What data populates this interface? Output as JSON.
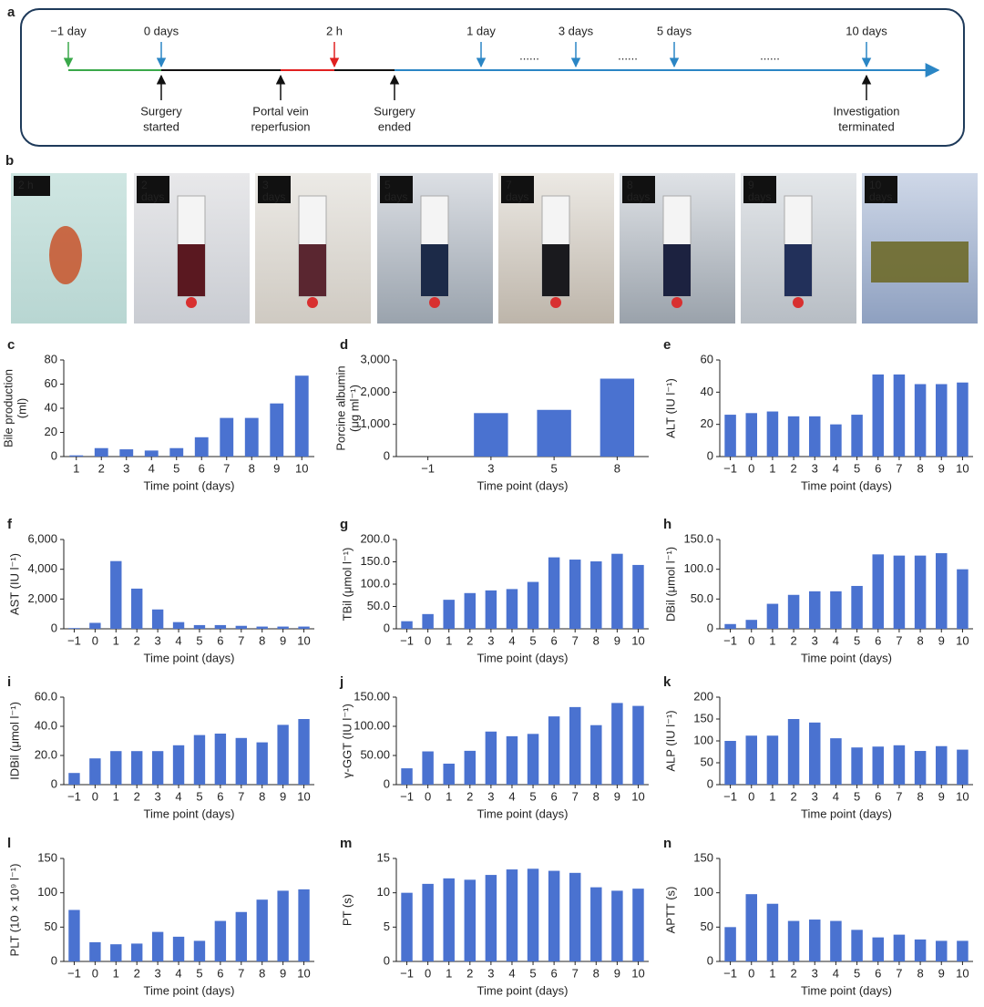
{
  "timeline": {
    "panel": "a",
    "top_labels": [
      {
        "text": "−1 day",
        "color": "#3aa84a"
      },
      {
        "text": "0 days",
        "color": "#2b86c5"
      },
      {
        "text": "2 h",
        "color": "#e02020"
      },
      {
        "text": "1 day",
        "color": "#2b86c5"
      },
      {
        "text": "3 days",
        "color": "#2b86c5"
      },
      {
        "text": "5 days",
        "color": "#2b86c5"
      },
      {
        "text": "10 days",
        "color": "#2b86c5"
      }
    ],
    "dots": [
      "......",
      "......",
      "......"
    ],
    "events": [
      [
        "Surgery",
        "started"
      ],
      [
        "Portal vein",
        "reperfusion"
      ],
      [
        "Surgery",
        "ended"
      ],
      [
        "Investigation",
        "terminated"
      ]
    ]
  },
  "photos": {
    "panel": "b",
    "labels": [
      [
        "2 h"
      ],
      [
        "2",
        "days"
      ],
      [
        "3",
        "days"
      ],
      [
        "5",
        "days"
      ],
      [
        "7",
        "days"
      ],
      [
        "8",
        "days"
      ],
      [
        "9",
        "days"
      ],
      [
        "10",
        "days"
      ]
    ]
  },
  "chart_data": [
    {
      "type": "bar",
      "panel": "c",
      "y_label": [
        "Bile production",
        "(ml)"
      ],
      "x_label": "Time point (days)",
      "color": "#4a72d0",
      "categories": [
        "1",
        "2",
        "3",
        "4",
        "5",
        "6",
        "7",
        "8",
        "9",
        "10"
      ],
      "values": [
        1,
        7,
        6,
        5,
        7,
        16,
        32,
        32,
        44,
        67
      ],
      "ylim": [
        0,
        80
      ],
      "yticks": [
        0,
        20,
        40,
        60,
        80
      ]
    },
    {
      "type": "bar",
      "panel": "d",
      "y_label": [
        "Porcine albumin",
        "(μg ml⁻¹)"
      ],
      "x_label": "Time point (days)",
      "color": "#4a72d0",
      "categories": [
        "−1",
        "3",
        "5",
        "8"
      ],
      "values": [
        0,
        1350,
        1450,
        2420
      ],
      "ylim": [
        0,
        3000
      ],
      "yticks": [
        0,
        {
          "value": 1000,
          "label": "1,000"
        },
        {
          "value": 2000,
          "label": "2,000"
        },
        {
          "value": 3000,
          "label": "3,000"
        }
      ]
    },
    {
      "type": "bar",
      "panel": "e",
      "y_label": [
        "ALT (IU l⁻¹)"
      ],
      "x_label": "Time point (days)",
      "color": "#4a72d0",
      "categories": [
        "−1",
        "0",
        "1",
        "2",
        "3",
        "4",
        "5",
        "6",
        "7",
        "8",
        "9",
        "10"
      ],
      "values": [
        26,
        27,
        28,
        25,
        25,
        20,
        26,
        51,
        51,
        45,
        45,
        46
      ],
      "ylim": [
        0,
        60
      ],
      "yticks": [
        0,
        20,
        40,
        60
      ]
    },
    {
      "type": "bar",
      "panel": "f",
      "y_label": [
        "AST (IU l⁻¹)"
      ],
      "x_label": "Time point (days)",
      "color": "#4a72d0",
      "categories": [
        "−1",
        "0",
        "1",
        "2",
        "3",
        "4",
        "5",
        "6",
        "7",
        "8",
        "9",
        "10"
      ],
      "values": [
        50,
        400,
        4550,
        2700,
        1300,
        450,
        250,
        250,
        200,
        150,
        150,
        150
      ],
      "ylim": [
        0,
        6000
      ],
      "yticks": [
        0,
        {
          "value": 2000,
          "label": "2,000"
        },
        {
          "value": 4000,
          "label": "4,000"
        },
        {
          "value": 6000,
          "label": "6,000"
        }
      ]
    },
    {
      "type": "bar",
      "panel": "g",
      "y_label": [
        "TBil (μmol l⁻¹)"
      ],
      "x_label": "Time point (days)",
      "color": "#4a72d0",
      "categories": [
        "−1",
        "0",
        "1",
        "2",
        "3",
        "4",
        "5",
        "6",
        "7",
        "8",
        "9",
        "10"
      ],
      "values": [
        17,
        33,
        65,
        80,
        86,
        89,
        105,
        160,
        155,
        151,
        168,
        143
      ],
      "ylim": [
        0,
        200
      ],
      "yticks": [
        0,
        {
          "value": 50,
          "label": "50.0"
        },
        {
          "value": 100,
          "label": "100.0"
        },
        {
          "value": 150,
          "label": "150.0"
        },
        {
          "value": 200,
          "label": "200.0"
        }
      ]
    },
    {
      "type": "bar",
      "panel": "h",
      "y_label": [
        "DBil (μmol l⁻¹)"
      ],
      "x_label": "Time point (days)",
      "color": "#4a72d0",
      "categories": [
        "−1",
        "0",
        "1",
        "2",
        "3",
        "4",
        "5",
        "6",
        "7",
        "8",
        "9",
        "10"
      ],
      "values": [
        8,
        15,
        42,
        57,
        63,
        63,
        72,
        125,
        123,
        123,
        127,
        100
      ],
      "ylim": [
        0,
        150
      ],
      "yticks": [
        0,
        {
          "value": 50,
          "label": "50.0"
        },
        {
          "value": 100,
          "label": "100.0"
        },
        {
          "value": 150,
          "label": "150.0"
        }
      ]
    },
    {
      "type": "bar",
      "panel": "i",
      "y_label": [
        "IDBil (μmol l⁻¹)"
      ],
      "x_label": "Time point (days)",
      "color": "#4a72d0",
      "categories": [
        "−1",
        "0",
        "1",
        "2",
        "3",
        "4",
        "5",
        "6",
        "7",
        "8",
        "9",
        "10"
      ],
      "values": [
        8,
        18,
        23,
        23,
        23,
        27,
        34,
        35,
        32,
        29,
        41,
        45
      ],
      "ylim": [
        0,
        60
      ],
      "yticks": [
        0,
        {
          "value": 20,
          "label": "20.0"
        },
        {
          "value": 40,
          "label": "40.0"
        },
        {
          "value": 60,
          "label": "60.0"
        }
      ]
    },
    {
      "type": "bar",
      "panel": "j",
      "y_label": [
        "γ-GGT (IU l⁻¹)"
      ],
      "x_label": "Time point (days)",
      "color": "#4a72d0",
      "categories": [
        "−1",
        "0",
        "1",
        "2",
        "3",
        "4",
        "5",
        "6",
        "7",
        "8",
        "9",
        "10"
      ],
      "values": [
        28,
        57,
        36,
        58,
        91,
        83,
        87,
        117,
        133,
        102,
        140,
        135
      ],
      "ylim": [
        0,
        150
      ],
      "yticks": [
        0,
        {
          "value": 50,
          "label": "50.00"
        },
        {
          "value": 100,
          "label": "100.00"
        },
        {
          "value": 150,
          "label": "150.00"
        }
      ]
    },
    {
      "type": "bar",
      "panel": "k",
      "y_label": [
        "ALP (IU l⁻¹)"
      ],
      "x_label": "Time point (days)",
      "color": "#4a72d0",
      "categories": [
        "−1",
        "0",
        "1",
        "2",
        "3",
        "4",
        "5",
        "6",
        "7",
        "8",
        "9",
        "10"
      ],
      "values": [
        100,
        112,
        112,
        150,
        142,
        106,
        85,
        87,
        90,
        77,
        88,
        80
      ],
      "ylim": [
        0,
        200
      ],
      "yticks": [
        0,
        50,
        100,
        150,
        200
      ]
    },
    {
      "type": "bar",
      "panel": "l",
      "y_label": [
        "PLT (10 × 10⁹ l⁻¹)"
      ],
      "x_label": "Time point (days)",
      "color": "#4a72d0",
      "categories": [
        "−1",
        "0",
        "1",
        "2",
        "3",
        "4",
        "5",
        "6",
        "7",
        "8",
        "9",
        "10"
      ],
      "values": [
        75,
        28,
        25,
        26,
        43,
        36,
        30,
        59,
        72,
        90,
        103,
        105
      ],
      "ylim": [
        0,
        150
      ],
      "yticks": [
        0,
        50,
        100,
        150
      ]
    },
    {
      "type": "bar",
      "panel": "m",
      "y_label": [
        "PT (s)"
      ],
      "x_label": "Time point (days)",
      "color": "#4a72d0",
      "categories": [
        "−1",
        "0",
        "1",
        "2",
        "3",
        "4",
        "5",
        "6",
        "7",
        "8",
        "9",
        "10"
      ],
      "values": [
        10.0,
        11.3,
        12.1,
        11.9,
        12.6,
        13.4,
        13.5,
        13.2,
        12.9,
        10.8,
        10.3,
        10.6
      ],
      "ylim": [
        0,
        15
      ],
      "yticks": [
        0,
        5,
        10,
        15
      ]
    },
    {
      "type": "bar",
      "panel": "n",
      "y_label": [
        "APTT (s)"
      ],
      "x_label": "Time point (days)",
      "color": "#4a72d0",
      "categories": [
        "−1",
        "0",
        "1",
        "2",
        "3",
        "4",
        "5",
        "6",
        "7",
        "8",
        "9",
        "10"
      ],
      "values": [
        50,
        98,
        84,
        59,
        61,
        59,
        46,
        35,
        39,
        32,
        30,
        30
      ],
      "ylim": [
        0,
        150
      ],
      "yticks": [
        0,
        50,
        100,
        150
      ]
    }
  ]
}
